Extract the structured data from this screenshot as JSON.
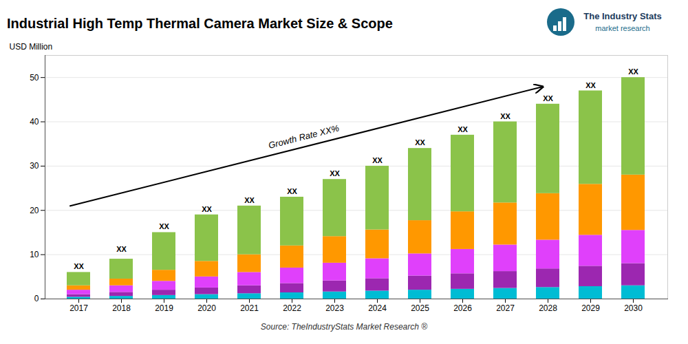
{
  "chart_data": {
    "type": "bar",
    "stacked": true,
    "title": "Industrial High Temp Thermal Camera Market Size & Scope",
    "ylabel": "USD Million",
    "source": "Source: TheIndustryStats Market Research ®",
    "categories": [
      "2017",
      "2018",
      "2019",
      "2020",
      "2021",
      "2022",
      "2023",
      "2024",
      "2025",
      "2026",
      "2027",
      "2028",
      "2029",
      "2030"
    ],
    "series": [
      {
        "color": "#00bcd4",
        "values": [
          0.4,
          0.6,
          0.8,
          1.0,
          1.2,
          1.4,
          1.6,
          1.8,
          2.0,
          2.2,
          2.4,
          2.6,
          2.8,
          3.0
        ]
      },
      {
        "color": "#9c27b0",
        "values": [
          0.6,
          0.9,
          1.2,
          1.5,
          1.8,
          2.1,
          2.5,
          2.8,
          3.2,
          3.5,
          3.8,
          4.2,
          4.6,
          5.0
        ]
      },
      {
        "color": "#e040fb",
        "values": [
          1.0,
          1.5,
          2.0,
          2.5,
          3.0,
          3.5,
          4.0,
          4.5,
          5.0,
          5.5,
          6.0,
          6.5,
          7.0,
          7.5
        ]
      },
      {
        "color": "#ff9800",
        "values": [
          1.0,
          1.5,
          2.5,
          3.5,
          4.0,
          5.0,
          6.0,
          6.5,
          7.5,
          8.5,
          9.5,
          10.5,
          11.5,
          12.5
        ]
      },
      {
        "color": "#8bc34a",
        "values": [
          3.0,
          4.5,
          8.5,
          10.5,
          11.0,
          11.0,
          12.9,
          14.4,
          16.3,
          17.3,
          18.3,
          20.2,
          21.1,
          22.0
        ]
      }
    ],
    "totals": [
      6,
      10,
      15,
      19,
      21,
      23,
      27,
      30,
      34,
      37,
      40,
      44,
      47,
      50
    ],
    "total_labels": [
      "XX",
      "XX",
      "XX",
      "XX",
      "XX",
      "XX",
      "XX",
      "XX",
      "XX",
      "XX",
      "XX",
      "XX",
      "XX",
      "XX"
    ],
    "annotations": [
      "Growth Rate XX%"
    ],
    "logo": [
      "The Industry Stats",
      "market research"
    ],
    "ylim": [
      0,
      55
    ],
    "yticks": [
      0,
      10,
      20,
      30,
      40,
      50
    ],
    "grid": true
  }
}
